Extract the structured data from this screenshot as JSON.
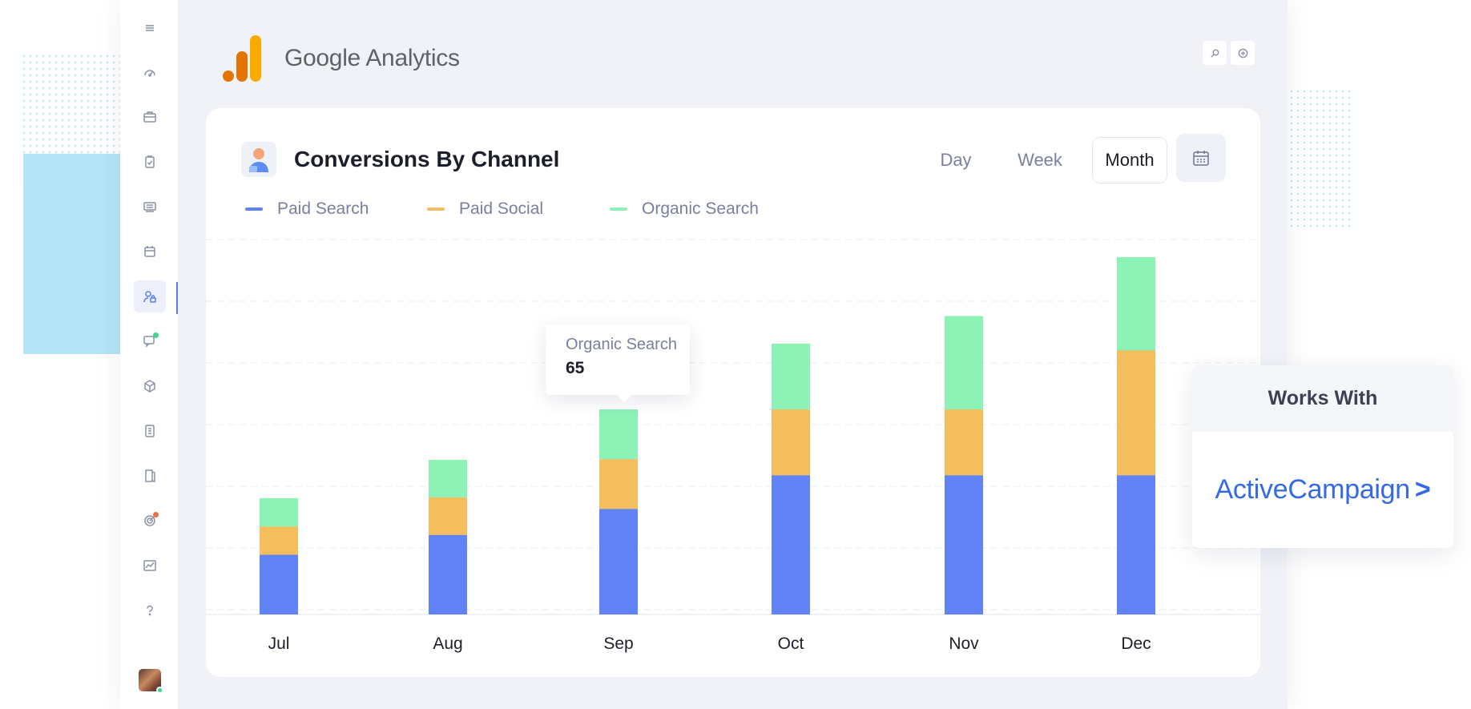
{
  "header": {
    "app_name_part1": "Google",
    "app_name_part2": "Analytics",
    "logo_icon": "google-analytics-logo-icon",
    "search_icon": "search-icon",
    "add_icon": "plus-circle-icon"
  },
  "sidebar": {
    "items": [
      {
        "name": "dashboard-icon"
      },
      {
        "name": "briefcase-icon"
      },
      {
        "name": "clipboard-check-icon"
      },
      {
        "name": "media-stack-icon"
      },
      {
        "name": "calendar-icon"
      },
      {
        "name": "user-lock-icon",
        "active": true
      },
      {
        "name": "chat-icon",
        "badge": "#3ed68c"
      },
      {
        "name": "cube-icon"
      },
      {
        "name": "document-icon"
      },
      {
        "name": "book-icon"
      },
      {
        "name": "target-icon",
        "badge": "#f06b4a"
      },
      {
        "name": "chart-icon"
      },
      {
        "name": "help-icon"
      }
    ],
    "accent": "#5b7cf0"
  },
  "card": {
    "title": "Conversions By Channel",
    "icon": "user-avatar-icon",
    "ranges": [
      "Day",
      "Week",
      "Month"
    ],
    "selected_range": "Month",
    "calendar_icon": "calendar-icon"
  },
  "tooltip": {
    "label": "Organic Search",
    "value": "65"
  },
  "chart_data": {
    "type": "bar",
    "stacked": true,
    "categories": [
      "Jul",
      "Aug",
      "Sep",
      "Oct",
      "Nov",
      "Dec"
    ],
    "series": [
      {
        "name": "Paid Search",
        "color": "#6183f5",
        "values": [
          78,
          104,
          138,
          182,
          182,
          182
        ]
      },
      {
        "name": "Paid Social",
        "color": "#f4bd5d",
        "values": [
          37,
          49,
          65,
          86,
          86,
          163
        ]
      },
      {
        "name": "Organic Search",
        "color": "#8cf2b6",
        "values": [
          37,
          49,
          65,
          86,
          122,
          122
        ]
      }
    ],
    "ylim": [
      0,
      490
    ],
    "grid": true,
    "legend_position": "top-left"
  },
  "works_with": {
    "title": "Works With",
    "brand": "ActiveCampaign",
    "brand_mark": ">"
  }
}
